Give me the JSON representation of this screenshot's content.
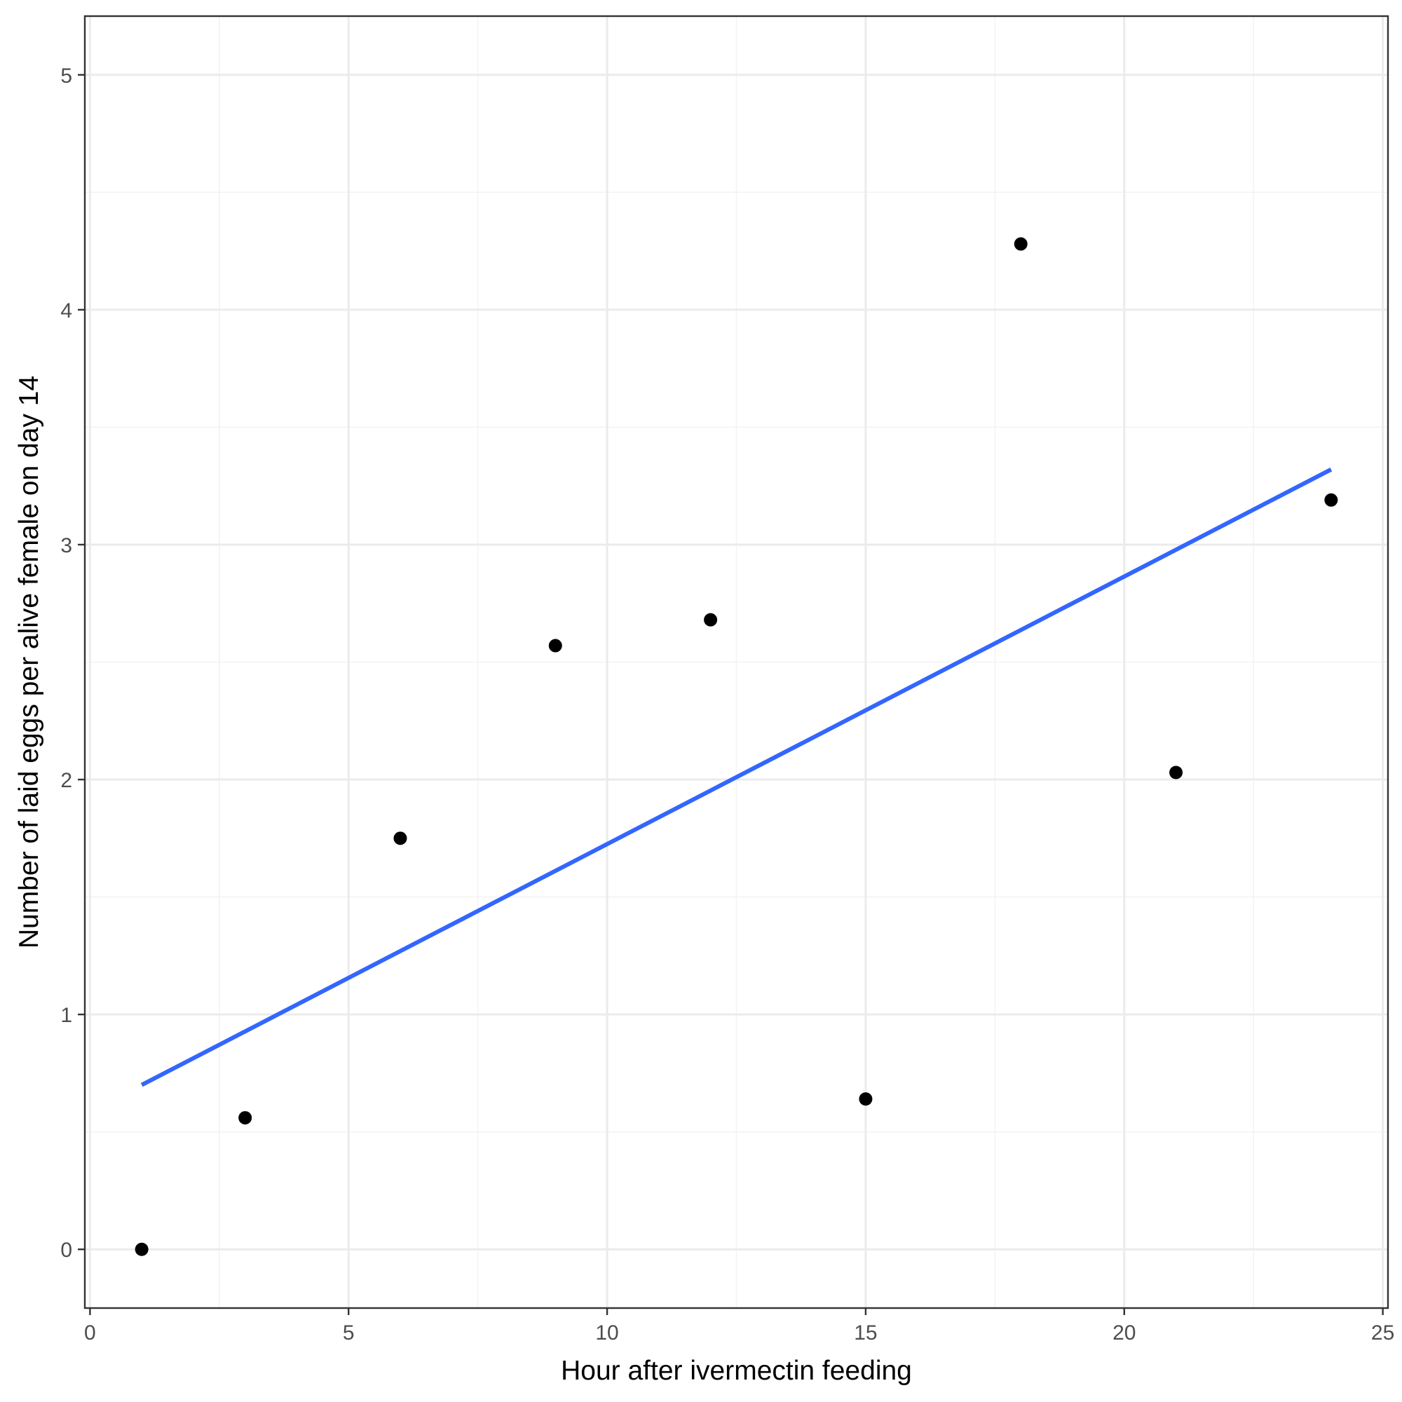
{
  "chart_data": {
    "type": "scatter",
    "title": "",
    "xlabel": "Hour after ivermectin feeding",
    "ylabel": "Number of laid eggs per alive female on day 14",
    "xlim": [
      -0.1,
      25.1
    ],
    "ylim": [
      -0.25,
      5.25
    ],
    "x_ticks": [
      0,
      5,
      10,
      15,
      20,
      25
    ],
    "y_ticks": [
      0,
      1,
      2,
      3,
      4,
      5
    ],
    "x_tick_labels": [
      "0",
      "5",
      "10",
      "15",
      "20",
      "25"
    ],
    "y_tick_labels": [
      "0",
      "1",
      "2",
      "3",
      "4",
      "5"
    ],
    "grid": true,
    "legend": "none",
    "point_color": "#000000",
    "series": [
      {
        "x": [
          1,
          3,
          6,
          9,
          12,
          15,
          18,
          21,
          24
        ],
        "y": [
          0.0,
          0.56,
          1.75,
          2.57,
          2.68,
          0.64,
          4.28,
          2.03,
          3.19
        ]
      }
    ],
    "trend_line": {
      "type": "linear",
      "color": "#3366ff",
      "x": [
        1,
        24
      ],
      "y": [
        0.7,
        3.32
      ]
    }
  }
}
